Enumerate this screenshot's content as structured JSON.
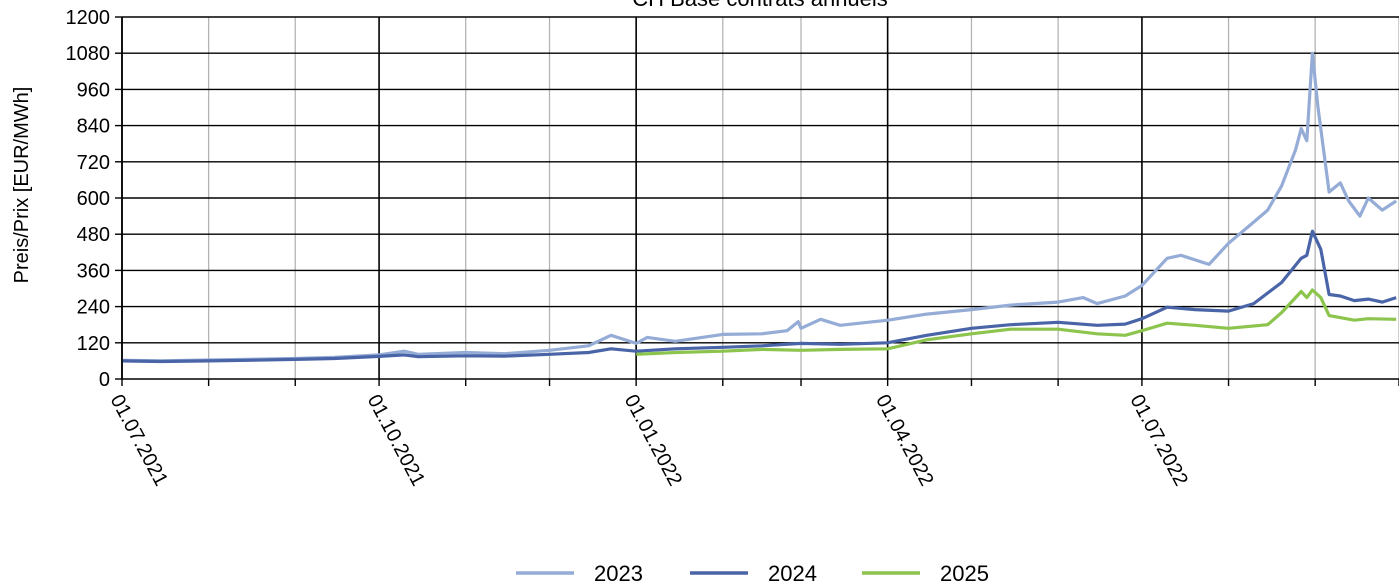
{
  "chart_data": {
    "type": "line",
    "title": "CH Base contrats annuels",
    "ylabel": "Preis/Prix [EUR/MWh]",
    "xlabel": "",
    "ylim": [
      0,
      1200
    ],
    "yticks": [
      0,
      120,
      240,
      360,
      480,
      600,
      720,
      840,
      960,
      1080,
      1200
    ],
    "x_tick_labels": [
      "01.07.2021",
      "01.10.2021",
      "01.01.2022",
      "01.04.2022",
      "01.07.2022"
    ],
    "grid": true,
    "legend_position": "bottom",
    "colors": {
      "2023": "#94acd6",
      "2024": "#4a64a8",
      "2025": "#8cc44e"
    },
    "series": [
      {
        "name": "2023",
        "points": [
          [
            "01.07.2021",
            62
          ],
          [
            "15.07.2021",
            60
          ],
          [
            "01.08.2021",
            63
          ],
          [
            "15.08.2021",
            65
          ],
          [
            "01.09.2021",
            68
          ],
          [
            "15.09.2021",
            72
          ],
          [
            "01.10.2021",
            80
          ],
          [
            "10.10.2021",
            92
          ],
          [
            "15.10.2021",
            82
          ],
          [
            "01.11.2021",
            88
          ],
          [
            "15.11.2021",
            84
          ],
          [
            "01.12.2021",
            95
          ],
          [
            "15.12.2021",
            110
          ],
          [
            "23.12.2021",
            145
          ],
          [
            "01.01.2022",
            118
          ],
          [
            "05.01.2022",
            138
          ],
          [
            "15.01.2022",
            125
          ],
          [
            "01.02.2022",
            148
          ],
          [
            "15.02.2022",
            150
          ],
          [
            "24.02.2022",
            160
          ],
          [
            "28.02.2022",
            190
          ],
          [
            "01.03.2022",
            168
          ],
          [
            "08.03.2022",
            198
          ],
          [
            "15.03.2022",
            178
          ],
          [
            "01.04.2022",
            195
          ],
          [
            "15.04.2022",
            215
          ],
          [
            "01.05.2022",
            230
          ],
          [
            "15.05.2022",
            245
          ],
          [
            "01.06.2022",
            255
          ],
          [
            "10.06.2022",
            270
          ],
          [
            "15.06.2022",
            250
          ],
          [
            "25.06.2022",
            275
          ],
          [
            "01.07.2022",
            310
          ],
          [
            "10.07.2022",
            400
          ],
          [
            "15.07.2022",
            410
          ],
          [
            "25.07.2022",
            380
          ],
          [
            "01.08.2022",
            450
          ],
          [
            "10.08.2022",
            520
          ],
          [
            "15.08.2022",
            560
          ],
          [
            "20.08.2022",
            640
          ],
          [
            "25.08.2022",
            760
          ],
          [
            "27.08.2022",
            830
          ],
          [
            "29.08.2022",
            790
          ],
          [
            "31.08.2022",
            1080
          ],
          [
            "02.09.2022",
            900
          ],
          [
            "06.09.2022",
            620
          ],
          [
            "10.09.2022",
            650
          ],
          [
            "13.09.2022",
            590
          ],
          [
            "17.09.2022",
            540
          ],
          [
            "20.09.2022",
            600
          ],
          [
            "25.09.2022",
            560
          ],
          [
            "30.09.2022",
            590
          ]
        ]
      },
      {
        "name": "2024",
        "points": [
          [
            "01.07.2021",
            60
          ],
          [
            "15.07.2021",
            58
          ],
          [
            "01.08.2021",
            60
          ],
          [
            "15.08.2021",
            62
          ],
          [
            "01.09.2021",
            65
          ],
          [
            "15.09.2021",
            68
          ],
          [
            "01.10.2021",
            75
          ],
          [
            "10.10.2021",
            80
          ],
          [
            "15.10.2021",
            74
          ],
          [
            "01.11.2021",
            77
          ],
          [
            "15.11.2021",
            76
          ],
          [
            "01.12.2021",
            82
          ],
          [
            "15.12.2021",
            88
          ],
          [
            "23.12.2021",
            100
          ],
          [
            "01.01.2022",
            92
          ],
          [
            "15.01.2022",
            100
          ],
          [
            "01.02.2022",
            105
          ],
          [
            "15.02.2022",
            110
          ],
          [
            "01.03.2022",
            118
          ],
          [
            "15.03.2022",
            115
          ],
          [
            "01.04.2022",
            120
          ],
          [
            "15.04.2022",
            145
          ],
          [
            "01.05.2022",
            168
          ],
          [
            "15.05.2022",
            180
          ],
          [
            "01.06.2022",
            188
          ],
          [
            "15.06.2022",
            178
          ],
          [
            "25.06.2022",
            182
          ],
          [
            "01.07.2022",
            200
          ],
          [
            "10.07.2022",
            238
          ],
          [
            "20.07.2022",
            230
          ],
          [
            "01.08.2022",
            225
          ],
          [
            "10.08.2022",
            250
          ],
          [
            "20.08.2022",
            320
          ],
          [
            "27.08.2022",
            400
          ],
          [
            "29.08.2022",
            410
          ],
          [
            "31.08.2022",
            490
          ],
          [
            "03.09.2022",
            430
          ],
          [
            "06.09.2022",
            280
          ],
          [
            "10.09.2022",
            275
          ],
          [
            "15.09.2022",
            260
          ],
          [
            "20.09.2022",
            265
          ],
          [
            "25.09.2022",
            255
          ],
          [
            "30.09.2022",
            270
          ]
        ]
      },
      {
        "name": "2025",
        "points": [
          [
            "01.01.2022",
            82
          ],
          [
            "15.01.2022",
            88
          ],
          [
            "01.02.2022",
            92
          ],
          [
            "15.02.2022",
            98
          ],
          [
            "01.03.2022",
            95
          ],
          [
            "15.03.2022",
            98
          ],
          [
            "01.04.2022",
            100
          ],
          [
            "15.04.2022",
            130
          ],
          [
            "01.05.2022",
            150
          ],
          [
            "15.05.2022",
            165
          ],
          [
            "01.06.2022",
            165
          ],
          [
            "15.06.2022",
            150
          ],
          [
            "25.06.2022",
            145
          ],
          [
            "01.07.2022",
            160
          ],
          [
            "10.07.2022",
            185
          ],
          [
            "20.07.2022",
            178
          ],
          [
            "01.08.2022",
            168
          ],
          [
            "15.08.2022",
            180
          ],
          [
            "20.08.2022",
            220
          ],
          [
            "27.08.2022",
            290
          ],
          [
            "29.08.2022",
            270
          ],
          [
            "31.08.2022",
            295
          ],
          [
            "03.09.2022",
            270
          ],
          [
            "06.09.2022",
            210
          ],
          [
            "15.09.2022",
            195
          ],
          [
            "20.09.2022",
            200
          ],
          [
            "30.09.2022",
            198
          ]
        ]
      }
    ]
  }
}
